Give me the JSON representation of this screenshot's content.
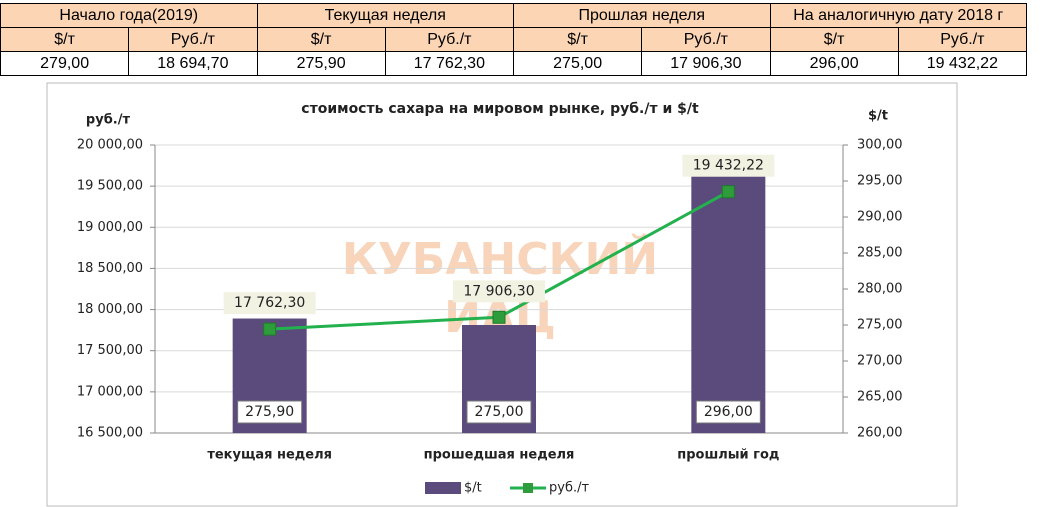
{
  "table": {
    "groups": [
      "Начало года(2019)",
      "Текущая неделя",
      "Прошлая неделя",
      "На аналогичную дату 2018 г"
    ],
    "units": [
      "$/т",
      "Руб./т",
      "$/т",
      "Руб./т",
      "$/т",
      "Руб./т",
      "$/т",
      "Руб./т"
    ],
    "rows": [
      [
        "279,00",
        "18 694,70",
        "275,90",
        "17 762,30",
        "275,00",
        "17 906,30",
        "296,00",
        "19 432,22"
      ]
    ]
  },
  "chart_data": {
    "type": "combo",
    "title": "стоимость сахара на мировом рынке, руб./т и $/t",
    "y_label": "руб./т",
    "y2_label": "$/t",
    "watermark": [
      "КУБАНСКИЙ",
      "ИАЦ"
    ],
    "categories": [
      "текущая неделя",
      "прошедшая неделя",
      "прошлый год"
    ],
    "series": [
      {
        "name": "$/t",
        "type": "bar",
        "axis": "y2",
        "color": "#5b4a7c",
        "values": [
          275.9,
          275.0,
          296.0
        ],
        "value_labels": [
          "275,90",
          "275,00",
          "296,00"
        ]
      },
      {
        "name": "руб./т",
        "type": "line",
        "axis": "y",
        "color": "#23b14d",
        "values": [
          17762.3,
          17906.3,
          19432.22
        ],
        "value_labels": [
          "17 762,30",
          "17 906,30",
          "19 432,22"
        ]
      }
    ],
    "ylim": [
      16500,
      20000
    ],
    "yticks": [
      {
        "value": 16500,
        "label": "16 500,00"
      },
      {
        "value": 17000,
        "label": "17 000,00"
      },
      {
        "value": 17500,
        "label": "17 500,00"
      },
      {
        "value": 18000,
        "label": "18 000,00"
      },
      {
        "value": 18500,
        "label": "18 500,00"
      },
      {
        "value": 19000,
        "label": "19 000,00"
      },
      {
        "value": 19500,
        "label": "19 500,00"
      },
      {
        "value": 20000,
        "label": "20 000,00"
      }
    ],
    "y2lim": [
      260,
      300
    ],
    "y2ticks": [
      {
        "value": 260,
        "label": "260,00"
      },
      {
        "value": 265,
        "label": "265,00"
      },
      {
        "value": 270,
        "label": "270,00"
      },
      {
        "value": 275,
        "label": "275,00"
      },
      {
        "value": 280,
        "label": "280,00"
      },
      {
        "value": 285,
        "label": "285,00"
      },
      {
        "value": 290,
        "label": "290,00"
      },
      {
        "value": 295,
        "label": "295,00"
      },
      {
        "value": 300,
        "label": "300,00"
      }
    ],
    "grid": true,
    "legend": "bottom"
  }
}
